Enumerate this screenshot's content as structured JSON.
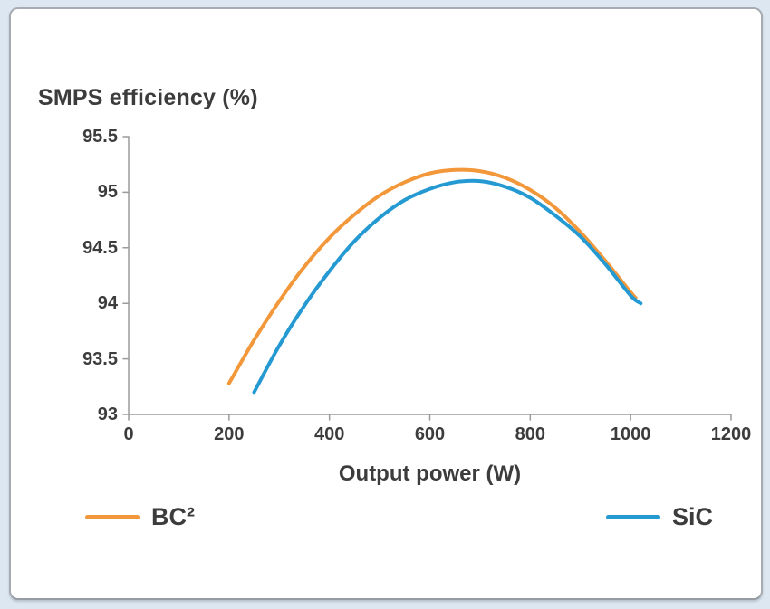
{
  "chart_data": {
    "type": "line",
    "title": "SMPS efficiency (%)",
    "xlabel": "Output power (W)",
    "ylabel": "SMPS efficiency (%)",
    "xlim": [
      0,
      1200
    ],
    "ylim": [
      93,
      95.5
    ],
    "x_ticks": [
      0,
      200,
      400,
      600,
      800,
      1000,
      1200
    ],
    "y_ticks": [
      93,
      93.5,
      94,
      94.5,
      95,
      95.5
    ],
    "grid": false,
    "legend_position": "bottom",
    "series": [
      {
        "name": "BC²",
        "color": "#F2983B",
        "peak": {
          "x": 650,
          "y": 95.2
        },
        "points": [
          [
            200,
            93.28
          ],
          [
            250,
            93.67
          ],
          [
            300,
            94.02
          ],
          [
            350,
            94.33
          ],
          [
            400,
            94.59
          ],
          [
            450,
            94.8
          ],
          [
            500,
            94.97
          ],
          [
            550,
            95.09
          ],
          [
            600,
            95.17
          ],
          [
            650,
            95.2
          ],
          [
            700,
            95.19
          ],
          [
            750,
            95.13
          ],
          [
            800,
            95.02
          ],
          [
            850,
            94.86
          ],
          [
            900,
            94.64
          ],
          [
            950,
            94.38
          ],
          [
            1000,
            94.1
          ],
          [
            1010,
            94.05
          ]
        ]
      },
      {
        "name": "SiC",
        "color": "#2499D2",
        "peak": {
          "x": 680,
          "y": 95.1
        },
        "points": [
          [
            250,
            93.2
          ],
          [
            300,
            93.62
          ],
          [
            350,
            93.98
          ],
          [
            400,
            94.29
          ],
          [
            450,
            94.56
          ],
          [
            500,
            94.77
          ],
          [
            550,
            94.93
          ],
          [
            600,
            95.03
          ],
          [
            650,
            95.09
          ],
          [
            700,
            95.1
          ],
          [
            750,
            95.05
          ],
          [
            800,
            94.95
          ],
          [
            850,
            94.79
          ],
          [
            900,
            94.6
          ],
          [
            950,
            94.35
          ],
          [
            1000,
            94.07
          ],
          [
            1020,
            94.0
          ]
        ]
      }
    ]
  },
  "colors": {
    "page_background": "#dde7f1",
    "card_background": "#ffffff",
    "card_border": "#a7abb2",
    "axis": "#9b9b9b",
    "text": "#3c3c3c",
    "series_bc2": "#F2983B",
    "series_sic": "#2499D2"
  }
}
